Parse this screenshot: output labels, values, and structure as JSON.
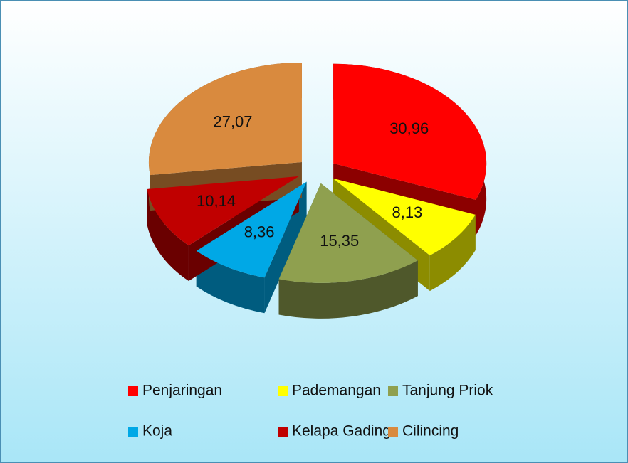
{
  "chart_data": {
    "type": "pie3d",
    "categories": [
      "Penjaringan",
      "Pademangan",
      "Tanjung Priok",
      "Koja",
      "Kelapa Gading",
      "Cilincing"
    ],
    "values": [
      30.96,
      8.13,
      15.35,
      8.36,
      10.14,
      27.07
    ],
    "value_labels": [
      "30,96",
      "8,13",
      "15,35",
      "8,36",
      "10,14",
      "27,07"
    ],
    "colors": [
      "#ff0000",
      "#ffff00",
      "#8fa04f",
      "#00a8e6",
      "#c00000",
      "#d98a3e"
    ],
    "legend": "bottom"
  }
}
